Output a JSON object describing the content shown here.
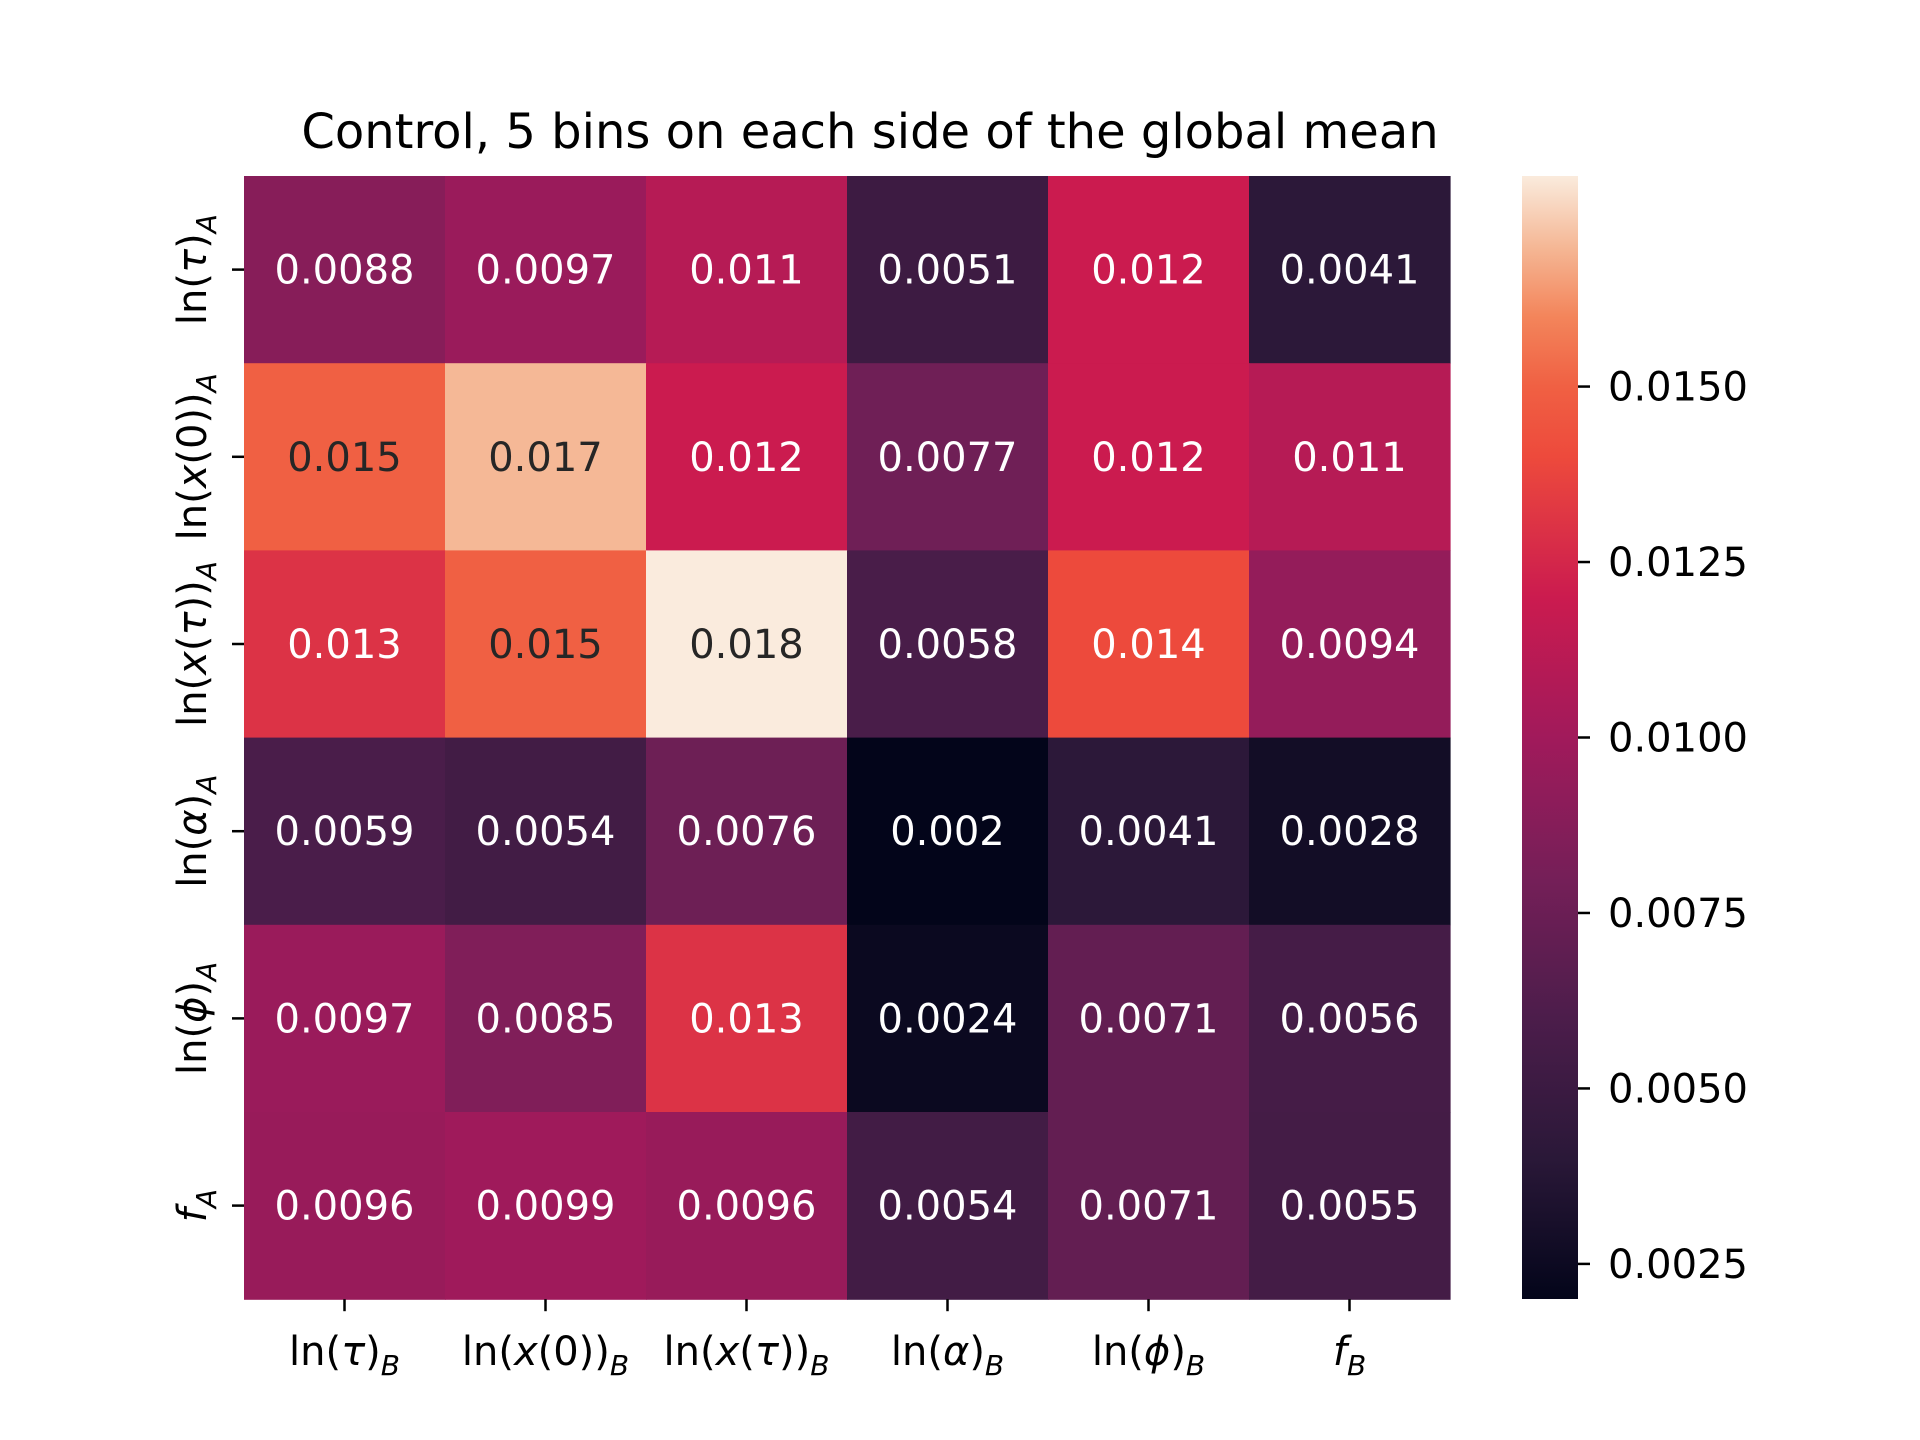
{
  "chart_data": {
    "type": "heatmap",
    "title": "Control, 5 bins on each side of the global mean",
    "x_labels": [
      {
        "base": "ln(",
        "sym": "τ",
        "close": ")",
        "sub": "B"
      },
      {
        "base": "ln(",
        "sym": "x",
        "close": "(0))",
        "sub": "B"
      },
      {
        "base": "ln(",
        "sym": "x",
        "mid": "(",
        "sym2": "τ",
        "close": "))",
        "sub": "B"
      },
      {
        "base": "ln(",
        "sym": "α",
        "close": ")",
        "sub": "B"
      },
      {
        "base": "ln(",
        "sym": "ϕ",
        "close": ")",
        "sub": "B"
      },
      {
        "base": "",
        "sym": "f",
        "close": "",
        "sub": "B"
      }
    ],
    "y_labels": [
      {
        "base": "ln(",
        "sym": "τ",
        "close": ")",
        "sub": "A"
      },
      {
        "base": "ln(",
        "sym": "x",
        "close": "(0))",
        "sub": "A"
      },
      {
        "base": "ln(",
        "sym": "x",
        "mid": "(",
        "sym2": "τ",
        "close": "))",
        "sub": "A"
      },
      {
        "base": "ln(",
        "sym": "α",
        "close": ")",
        "sub": "A"
      },
      {
        "base": "ln(",
        "sym": "ϕ",
        "close": ")",
        "sub": "A"
      },
      {
        "base": "",
        "sym": "f",
        "close": "",
        "sub": "A"
      }
    ],
    "values": [
      [
        0.0088,
        0.0097,
        0.011,
        0.0051,
        0.012,
        0.0041
      ],
      [
        0.015,
        0.017,
        0.012,
        0.0077,
        0.012,
        0.011
      ],
      [
        0.013,
        0.015,
        0.018,
        0.0058,
        0.014,
        0.0094
      ],
      [
        0.0059,
        0.0054,
        0.0076,
        0.002,
        0.0041,
        0.0028
      ],
      [
        0.0097,
        0.0085,
        0.013,
        0.0024,
        0.0071,
        0.0056
      ],
      [
        0.0096,
        0.0099,
        0.0096,
        0.0054,
        0.0071,
        0.0055
      ]
    ],
    "cell_text": [
      [
        "0.0088",
        "0.0097",
        "0.011",
        "0.0051",
        "0.012",
        "0.0041"
      ],
      [
        "0.015",
        "0.017",
        "0.012",
        "0.0077",
        "0.012",
        "0.011"
      ],
      [
        "0.013",
        "0.015",
        "0.018",
        "0.0058",
        "0.014",
        "0.0094"
      ],
      [
        "0.0059",
        "0.0054",
        "0.0076",
        "0.002",
        "0.0041",
        "0.0028"
      ],
      [
        "0.0097",
        "0.0085",
        "0.013",
        "0.0024",
        "0.0071",
        "0.0056"
      ],
      [
        "0.0096",
        "0.0099",
        "0.0096",
        "0.0054",
        "0.0071",
        "0.0055"
      ]
    ],
    "colormap": "rocket",
    "color_range": [
      0.002,
      0.018
    ],
    "colorbar_ticks": [
      0.0025,
      0.005,
      0.0075,
      0.01,
      0.0125,
      0.015
    ],
    "colorbar_tick_labels": [
      "0.0025",
      "0.0050",
      "0.0075",
      "0.0100",
      "0.0125",
      "0.0150"
    ],
    "colorbar_position": "right",
    "grid": false
  }
}
